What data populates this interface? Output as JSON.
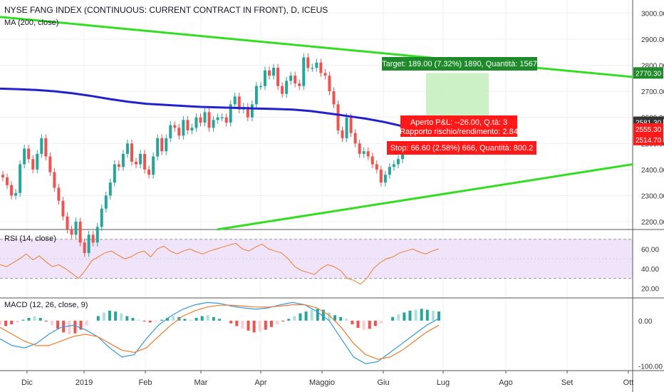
{
  "header": {
    "title": "NYSE FANG INDEX (CONTINUOUS: CURRENT CONTRACT IN FRONT), D, ICEUS",
    "ma_label": "MA (200, close)"
  },
  "colors": {
    "up": "#26a69a",
    "down": "#ef5350",
    "ma": "#2222cc",
    "trendline": "#33dd22",
    "target_box": "#c8f0c0",
    "target_label": "#1e8a2a",
    "stop_label": "#ff1a1a",
    "rsi_band": "#f0e4fb",
    "rsi_line": "#f07b2c",
    "macd_line": "#3399dd",
    "signal_line": "#f07b2c"
  },
  "chart_data": [
    {
      "type": "candlestick",
      "title": "NYSE FANG INDEX (CONTINUOUS: CURRENT CONTRACT IN FRONT), D, ICEUS",
      "x_ticks": [
        "Dic",
        "2019",
        "Feb",
        "Mar",
        "Apr",
        "Maggio",
        "Giu",
        "Lug",
        "Ago",
        "Set",
        "Ott"
      ],
      "y_ticks": [
        2200.0,
        2300.0,
        2400.0,
        2500.0,
        2600.0,
        2700.0,
        2800.0,
        2900.0,
        3000.0
      ],
      "ylim": [
        2170,
        3050
      ],
      "series_close": [
        2370,
        2340,
        2300,
        2310,
        2420,
        2480,
        2440,
        2400,
        2460,
        2520,
        2450,
        2390,
        2330,
        2280,
        2220,
        2170,
        2150,
        2200,
        2120,
        2080,
        2150,
        2120,
        2180,
        2250,
        2300,
        2350,
        2420,
        2410,
        2460,
        2500,
        2430,
        2420,
        2460,
        2400,
        2380,
        2450,
        2520,
        2470,
        2520,
        2570,
        2560,
        2530,
        2590,
        2550,
        2560,
        2600,
        2580,
        2620,
        2560,
        2590,
        2600,
        2600,
        2580,
        2650,
        2680,
        2630,
        2640,
        2600,
        2650,
        2720,
        2720,
        2780,
        2760,
        2790,
        2720,
        2690,
        2740,
        2760,
        2730,
        2720,
        2830,
        2790,
        2790,
        2810,
        2770,
        2760,
        2700,
        2650,
        2550,
        2520,
        2600,
        2540,
        2500,
        2460,
        2470,
        2450,
        2420,
        2400,
        2350,
        2380,
        2410,
        2420,
        2440,
        2470
      ],
      "ma_line": [
        2710,
        2708,
        2705,
        2700,
        2692,
        2682,
        2670,
        2660,
        2652,
        2648,
        2644,
        2640,
        2638,
        2636,
        2634,
        2632,
        2630,
        2624,
        2615,
        2605,
        2595,
        2582,
        2566
      ],
      "ma_label": "MA (200, close)",
      "price_labels": [
        {
          "value": "2770.30",
          "color": "#1e8a2a"
        },
        {
          "value": "2581.30",
          "color": "#333333"
        },
        {
          "value": "2555.30",
          "color": "#ff1a1a"
        },
        {
          "value": "2514.70",
          "color": "#ff1a1a"
        }
      ],
      "annotations": {
        "target": "Target: 189.00 (7.32%) 1890, Quantità: 1567",
        "pnl_line1": "Aperto P&L: --26.00, Q.tà: 3",
        "pnl_line2": "Rapporto rischio/rendimento: 2.84",
        "stop": "Stop: 66.60 (2.58%) 666, Quantità: 800.2"
      }
    },
    {
      "type": "line",
      "title": "RSI (14, close)",
      "y_ticks": [
        20.0,
        40.0,
        60.0
      ],
      "ylim": [
        10,
        80
      ],
      "bands": [
        30,
        70
      ],
      "values": [
        44,
        42,
        46,
        50,
        55,
        49,
        53,
        47,
        42,
        44,
        40,
        35,
        30,
        38,
        48,
        52,
        56,
        58,
        54,
        50,
        52,
        56,
        58,
        52,
        60,
        63,
        58,
        55,
        58,
        60,
        57,
        55,
        58,
        60,
        62,
        64,
        66,
        60,
        58,
        62,
        65,
        60,
        58,
        56,
        50,
        42,
        38,
        36,
        34,
        40,
        44,
        42,
        38,
        30,
        28,
        24,
        30,
        40,
        46,
        50,
        52,
        56,
        58,
        60,
        57,
        55,
        58,
        60
      ]
    },
    {
      "type": "bar",
      "title": "MACD (12, 26, close, 9)",
      "y_ticks": [
        -100.0,
        0.0
      ],
      "ylim": [
        -110,
        50
      ],
      "histogram": [
        -10,
        -12,
        -8,
        -4,
        2,
        6,
        10,
        6,
        -2,
        -10,
        -18,
        -26,
        -30,
        -28,
        -20,
        -10,
        0,
        10,
        18,
        22,
        20,
        16,
        10,
        6,
        2,
        -2,
        -4,
        -2,
        2,
        6,
        10,
        8,
        4,
        2,
        6,
        10,
        12,
        8,
        4,
        0,
        -6,
        -12,
        -18,
        -22,
        -26,
        -24,
        -20,
        -14,
        -8,
        -2,
        4,
        10,
        16,
        20,
        24,
        26,
        24,
        18,
        12,
        8,
        4,
        -8,
        -16,
        -20,
        -18,
        -12,
        -6,
        0,
        8,
        14,
        18,
        22,
        24,
        26,
        24,
        22,
        20
      ],
      "macd_line": [
        -40,
        -55,
        -60,
        -50,
        -30,
        -15,
        -10,
        -20,
        -35,
        -60,
        -80,
        -75,
        -40,
        -10,
        10,
        25,
        35,
        40,
        38,
        32,
        28,
        25,
        28,
        35,
        40,
        35,
        20,
        0,
        -40,
        -80,
        -95,
        -90,
        -70,
        -50,
        -30,
        -10,
        5
      ],
      "signal_line": [
        -15,
        -30,
        -45,
        -55,
        -55,
        -45,
        -35,
        -30,
        -35,
        -50,
        -65,
        -70,
        -60,
        -35,
        -10,
        10,
        22,
        30,
        34,
        34,
        32,
        30,
        30,
        32,
        35,
        35,
        28,
        12,
        -15,
        -50,
        -75,
        -85,
        -80,
        -65,
        -45,
        -25,
        -10
      ]
    }
  ],
  "macd_label": "MACD (12, 26, close, 9)",
  "rsi_label": "RSI (14, close)"
}
